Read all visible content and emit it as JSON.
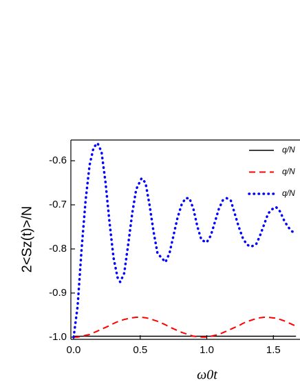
{
  "chart_data": {
    "type": "line",
    "x_label": "ω0t",
    "y_label": "2<Sz(t)>/N",
    "x": [
      0,
      0.03,
      0.06,
      0.09,
      0.12,
      0.15,
      0.18,
      0.21,
      0.24,
      0.27,
      0.3,
      0.33,
      0.35,
      0.38,
      0.41,
      0.44,
      0.47,
      0.51,
      0.54,
      0.57,
      0.6,
      0.63,
      0.66,
      0.69,
      0.72,
      0.75,
      0.78,
      0.81,
      0.84,
      0.87,
      0.9,
      0.93,
      0.96,
      1.0,
      1.03,
      1.06,
      1.09,
      1.12,
      1.15,
      1.18,
      1.21,
      1.24,
      1.27,
      1.3,
      1.33,
      1.37,
      1.4,
      1.43,
      1.46,
      1.49,
      1.52,
      1.55,
      1.58,
      1.61,
      1.64,
      1.67
    ],
    "series": [
      {
        "name": "q/N",
        "color": "#000000",
        "style": "solid",
        "values": [
          -0.998,
          -0.998,
          -0.998,
          -0.998,
          -0.998,
          -0.998,
          -0.998,
          -0.998,
          -0.998,
          -0.998,
          -0.998,
          -0.998,
          -0.998,
          -0.998,
          -0.998,
          -0.998,
          -0.998,
          -0.998,
          -0.998,
          -0.998,
          -0.998,
          -0.998,
          -0.998,
          -0.998,
          -0.998,
          -0.998,
          -0.998,
          -0.998,
          -0.998,
          -0.998,
          -0.998,
          -0.998,
          -0.998,
          -0.998,
          -0.998,
          -0.998,
          -0.998,
          -0.998,
          -0.998,
          -0.998,
          -0.998,
          -0.998,
          -0.998,
          -0.998,
          -0.998,
          -0.998,
          -0.998,
          -0.998,
          -0.998,
          -0.998,
          -0.998,
          -0.998,
          -0.998,
          -0.998,
          -0.998,
          -0.998
        ]
      },
      {
        "name": "q/N",
        "color": "#ff0000",
        "style": "dashed",
        "values": [
          -1.0,
          -1.0,
          -0.998,
          -0.996,
          -0.994,
          -0.99,
          -0.986,
          -0.982,
          -0.978,
          -0.974,
          -0.969,
          -0.965,
          -0.963,
          -0.96,
          -0.958,
          -0.956,
          -0.955,
          -0.955,
          -0.956,
          -0.958,
          -0.961,
          -0.964,
          -0.968,
          -0.972,
          -0.977,
          -0.981,
          -0.985,
          -0.989,
          -0.992,
          -0.995,
          -0.998,
          -0.999,
          -1.0,
          -1.0,
          -0.998,
          -0.996,
          -0.994,
          -0.99,
          -0.986,
          -0.982,
          -0.978,
          -0.974,
          -0.969,
          -0.965,
          -0.962,
          -0.958,
          -0.956,
          -0.955,
          -0.955,
          -0.956,
          -0.957,
          -0.96,
          -0.963,
          -0.967,
          -0.971,
          -0.975
        ]
      },
      {
        "name": "q/N",
        "color": "#0000ff",
        "style": "dotted",
        "values": [
          -1.0,
          -0.93,
          -0.8,
          -0.69,
          -0.61,
          -0.57,
          -0.56,
          -0.58,
          -0.65,
          -0.74,
          -0.82,
          -0.865,
          -0.875,
          -0.855,
          -0.79,
          -0.72,
          -0.665,
          -0.64,
          -0.65,
          -0.7,
          -0.76,
          -0.81,
          -0.82,
          -0.83,
          -0.81,
          -0.77,
          -0.73,
          -0.7,
          -0.685,
          -0.685,
          -0.71,
          -0.75,
          -0.78,
          -0.785,
          -0.77,
          -0.74,
          -0.71,
          -0.69,
          -0.685,
          -0.69,
          -0.72,
          -0.75,
          -0.775,
          -0.79,
          -0.795,
          -0.79,
          -0.77,
          -0.745,
          -0.72,
          -0.71,
          -0.705,
          -0.715,
          -0.735,
          -0.75,
          -0.76,
          -0.765
        ]
      }
    ],
    "xlim": [
      -0.0206,
      1.7
    ],
    "ylim": [
      -1.005,
      -0.553
    ],
    "xticks": [
      {
        "value": 0,
        "label": "0.0"
      },
      0.5,
      {
        "value": 1,
        "label": "1.0"
      },
      1.5
    ],
    "yticks": [
      {
        "value": -1,
        "label": "-1.0"
      },
      -0.9,
      -0.8,
      -0.7,
      -0.6
    ],
    "legend": "upper right"
  }
}
